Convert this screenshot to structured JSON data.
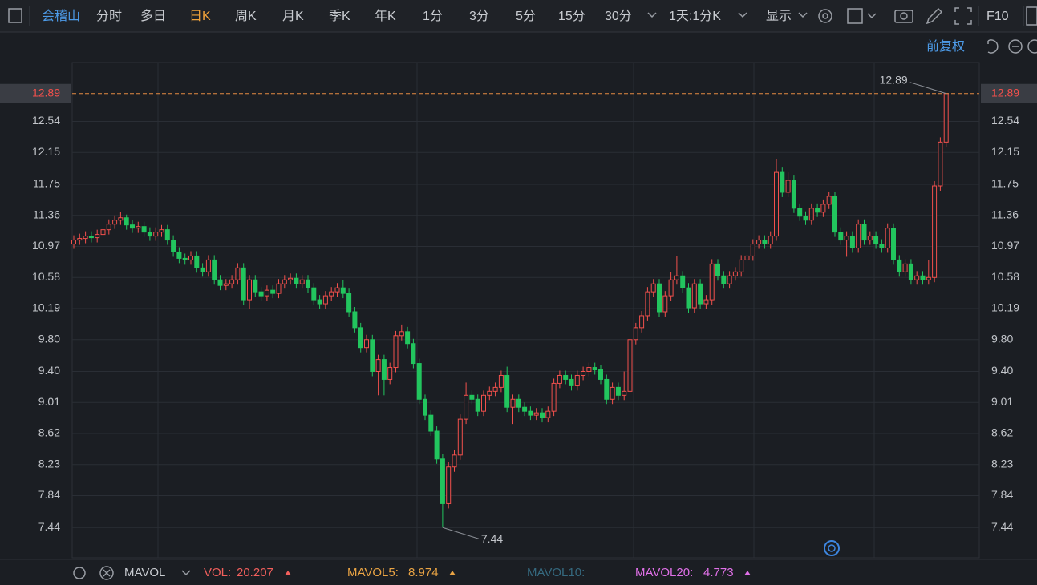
{
  "toolbar": {
    "stock": "会稽山",
    "tabs": [
      "分时",
      "多日",
      "日K",
      "周K",
      "月K",
      "季K",
      "年K",
      "1分",
      "3分",
      "5分",
      "15分",
      "30分"
    ],
    "active_tab": "日K",
    "period": "1天:1分K",
    "display": "显示",
    "f10": "F10",
    "adjust": "前复权"
  },
  "indicator_bar": {
    "name": "MAVOL",
    "items": [
      {
        "name": "VOL:",
        "value": "20.207",
        "color": "#f25f5c"
      },
      {
        "name": "MAVOL5:",
        "value": "8.974",
        "color": "#eaa444"
      },
      {
        "name": "MAVOL10:",
        "color": "#35697f"
      },
      {
        "name": "MAVOL20:",
        "value": "4.773",
        "color": "#e070e8"
      }
    ]
  },
  "chart_data": {
    "type": "candlestick",
    "up_color": "#f2504c",
    "down_color": "#22c55e",
    "last_color": "#e58a43",
    "ylim": [
      7.06,
      13.28
    ],
    "yticks": [
      12.54,
      12.15,
      11.75,
      11.36,
      10.97,
      10.58,
      10.19,
      {
        "value": 9.8,
        "label": "9.80"
      },
      {
        "value": 9.4,
        "label": "9.40"
      },
      9.01,
      8.62,
      8.23,
      7.84,
      7.44
    ],
    "grid": true,
    "open": [
      11.0,
      11.05,
      11.07,
      11.1,
      11.08,
      11.12,
      11.18,
      11.25,
      11.3,
      11.33,
      11.24,
      11.2,
      11.22,
      11.15,
      11.1,
      11.15,
      11.18,
      11.05,
      10.9,
      10.82,
      10.8,
      10.85,
      10.7,
      10.65,
      10.8,
      10.55,
      10.48,
      10.5,
      10.55,
      10.7,
      10.3,
      10.55,
      10.4,
      10.35,
      10.42,
      10.38,
      10.5,
      10.55,
      10.57,
      10.5,
      10.55,
      10.45,
      10.3,
      10.25,
      10.35,
      10.4,
      10.45,
      10.38,
      10.15,
      9.95,
      9.7,
      9.8,
      9.4,
      9.55,
      9.3,
      9.45,
      9.85,
      9.9,
      9.75,
      9.5,
      9.05,
      8.85,
      8.65,
      8.3,
      7.74,
      8.2,
      8.35,
      8.8,
      9.1,
      9.05,
      8.9,
      9.1,
      9.15,
      9.2,
      9.35,
      8.95,
      9.05,
      8.95,
      8.9,
      8.85,
      8.88,
      8.82,
      8.9,
      9.25,
      9.35,
      9.3,
      9.22,
      9.35,
      9.4,
      9.45,
      9.42,
      9.3,
      9.05,
      9.2,
      9.1,
      9.15,
      9.8,
      9.95,
      10.1,
      10.4,
      10.5,
      10.15,
      10.35,
      10.55,
      10.6,
      10.45,
      10.2,
      10.5,
      10.25,
      10.3,
      10.75,
      10.6,
      10.5,
      10.6,
      10.65,
      10.8,
      10.85,
      11.0,
      11.05,
      11.0,
      11.1,
      11.9,
      11.65,
      11.8,
      11.45,
      11.35,
      11.3,
      11.45,
      11.4,
      11.5,
      11.6,
      11.15,
      11.05,
      11.1,
      10.95,
      11.25,
      11.05,
      11.1,
      11.0,
      10.95,
      11.2,
      10.8,
      10.65,
      10.75,
      10.55,
      10.6,
      10.55,
      10.58,
      11.73,
      12.28
    ],
    "high": [
      11.11,
      11.13,
      11.16,
      11.16,
      11.18,
      11.24,
      11.31,
      11.36,
      11.4,
      11.37,
      11.3,
      11.28,
      11.28,
      11.21,
      11.21,
      11.24,
      11.24,
      11.11,
      10.96,
      10.88,
      10.91,
      10.91,
      10.76,
      10.86,
      10.86,
      10.61,
      10.56,
      10.61,
      10.76,
      10.76,
      10.61,
      10.61,
      10.46,
      10.48,
      10.48,
      10.56,
      10.61,
      10.63,
      10.63,
      10.61,
      10.61,
      10.51,
      10.36,
      10.41,
      10.46,
      10.51,
      10.55,
      10.44,
      10.21,
      10.01,
      9.86,
      9.86,
      9.61,
      9.61,
      9.51,
      9.91,
      9.99,
      9.96,
      9.81,
      9.56,
      9.11,
      8.91,
      8.71,
      8.36,
      8.26,
      8.41,
      8.86,
      9.26,
      9.16,
      9.11,
      9.16,
      9.21,
      9.26,
      9.41,
      9.46,
      9.11,
      9.11,
      9.01,
      8.96,
      8.94,
      8.94,
      8.96,
      9.31,
      9.41,
      9.41,
      9.36,
      9.41,
      9.46,
      9.51,
      9.51,
      9.48,
      9.36,
      9.26,
      9.26,
      9.4,
      9.86,
      10.01,
      10.16,
      10.46,
      10.56,
      10.56,
      10.41,
      10.65,
      10.85,
      10.66,
      10.51,
      10.56,
      10.56,
      10.36,
      10.81,
      10.81,
      10.66,
      10.66,
      10.71,
      10.86,
      10.91,
      11.06,
      11.11,
      11.11,
      11.16,
      12.07,
      11.96,
      11.9,
      11.86,
      11.51,
      11.41,
      11.51,
      11.51,
      11.56,
      11.66,
      11.66,
      11.21,
      11.16,
      11.16,
      11.31,
      11.31,
      11.16,
      11.16,
      11.06,
      11.26,
      11.26,
      10.86,
      10.81,
      10.81,
      10.66,
      10.66,
      10.8,
      11.79,
      12.34,
      12.89
    ],
    "low": [
      10.94,
      10.99,
      11.01,
      11.02,
      11.02,
      11.06,
      11.12,
      11.19,
      11.24,
      11.18,
      11.14,
      11.14,
      11.09,
      11.04,
      11.04,
      11.09,
      10.99,
      10.84,
      10.76,
      10.74,
      10.74,
      10.64,
      10.59,
      10.59,
      10.49,
      10.42,
      10.42,
      10.44,
      10.49,
      10.24,
      10.18,
      10.34,
      10.29,
      10.29,
      10.32,
      10.32,
      10.44,
      10.49,
      10.44,
      10.44,
      10.39,
      10.24,
      10.19,
      10.19,
      10.29,
      10.34,
      10.32,
      10.09,
      9.89,
      9.64,
      9.64,
      9.34,
      9.1,
      9.1,
      9.24,
      9.39,
      9.79,
      9.69,
      9.44,
      8.99,
      8.79,
      8.59,
      8.24,
      7.44,
      7.68,
      8.14,
      8.29,
      8.74,
      8.99,
      8.84,
      8.84,
      9.04,
      9.09,
      9.14,
      8.89,
      8.74,
      8.89,
      8.84,
      8.79,
      8.79,
      8.76,
      8.76,
      8.84,
      9.19,
      9.24,
      9.16,
      9.16,
      9.29,
      9.34,
      9.36,
      9.24,
      8.99,
      8.99,
      9.04,
      9.04,
      9.09,
      9.74,
      9.89,
      10.04,
      10.34,
      10.09,
      10.09,
      10.29,
      10.49,
      10.39,
      10.14,
      10.14,
      10.19,
      10.19,
      10.24,
      10.54,
      10.44,
      10.44,
      10.54,
      10.59,
      10.74,
      10.79,
      10.94,
      10.94,
      10.94,
      11.04,
      11.59,
      11.59,
      11.39,
      11.29,
      11.24,
      11.24,
      11.34,
      11.34,
      11.44,
      11.09,
      10.99,
      10.84,
      10.89,
      10.89,
      10.99,
      10.99,
      10.94,
      10.89,
      10.89,
      10.74,
      10.59,
      10.59,
      10.49,
      10.49,
      10.49,
      10.49,
      10.52,
      11.67,
      12.22
    ],
    "close": [
      11.05,
      11.07,
      11.1,
      11.08,
      11.12,
      11.18,
      11.25,
      11.3,
      11.33,
      11.24,
      11.2,
      11.22,
      11.15,
      11.1,
      11.15,
      11.18,
      11.05,
      10.9,
      10.82,
      10.8,
      10.85,
      10.7,
      10.65,
      10.8,
      10.55,
      10.48,
      10.5,
      10.55,
      10.7,
      10.3,
      10.55,
      10.4,
      10.35,
      10.42,
      10.38,
      10.5,
      10.55,
      10.57,
      10.5,
      10.55,
      10.45,
      10.3,
      10.25,
      10.35,
      10.4,
      10.45,
      10.38,
      10.15,
      9.95,
      9.7,
      9.8,
      9.4,
      9.55,
      9.3,
      9.45,
      9.85,
      9.9,
      9.75,
      9.5,
      9.05,
      8.85,
      8.65,
      8.3,
      7.74,
      8.2,
      8.35,
      8.8,
      9.1,
      9.05,
      8.9,
      9.1,
      9.15,
      9.2,
      9.35,
      8.95,
      9.05,
      8.95,
      8.9,
      8.85,
      8.88,
      8.82,
      8.9,
      9.25,
      9.35,
      9.3,
      9.22,
      9.35,
      9.4,
      9.45,
      9.42,
      9.3,
      9.05,
      9.2,
      9.1,
      9.15,
      9.8,
      9.95,
      10.1,
      10.4,
      10.5,
      10.15,
      10.35,
      10.55,
      10.6,
      10.45,
      10.2,
      10.5,
      10.25,
      10.3,
      10.75,
      10.6,
      10.5,
      10.6,
      10.65,
      10.8,
      10.85,
      11.0,
      11.05,
      11.0,
      11.1,
      11.9,
      11.65,
      11.8,
      11.45,
      11.35,
      11.3,
      11.45,
      11.4,
      11.5,
      11.6,
      11.15,
      11.05,
      11.1,
      10.95,
      11.25,
      11.05,
      11.1,
      11.0,
      10.95,
      11.2,
      10.8,
      10.65,
      10.75,
      10.55,
      10.6,
      10.55,
      10.58,
      11.73,
      12.28,
      12.89
    ]
  }
}
